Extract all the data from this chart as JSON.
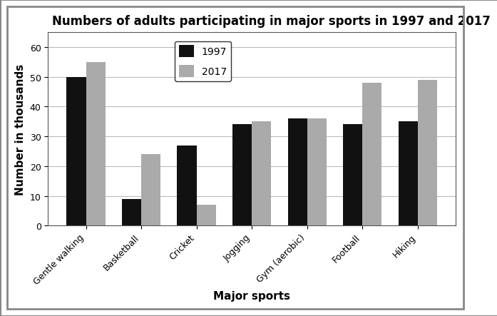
{
  "title": "Numbers of adults participating in major sports in 1997 and 2017",
  "categories": [
    "Gentle walking",
    "Basketball",
    "Cricket",
    "Jogging",
    "Gym (aerobic)",
    "Football",
    "Hiking"
  ],
  "values_1997": [
    50,
    9,
    27,
    34,
    36,
    34,
    35
  ],
  "values_2017": [
    55,
    24,
    7,
    35,
    36,
    48,
    49
  ],
  "color_1997": "#111111",
  "color_2017": "#aaaaaa",
  "legend_labels": [
    "1997",
    "2017"
  ],
  "xlabel": "Major sports",
  "ylabel": "Number in thousands",
  "ylim": [
    0,
    65
  ],
  "yticks": [
    0,
    10,
    20,
    30,
    40,
    50,
    60
  ],
  "bar_width": 0.35,
  "title_fontsize": 12,
  "label_fontsize": 11,
  "tick_fontsize": 9,
  "legend_fontsize": 10,
  "background_color": "#ffffff",
  "grid_color": "#bbbbbb",
  "border_color": "#888888"
}
